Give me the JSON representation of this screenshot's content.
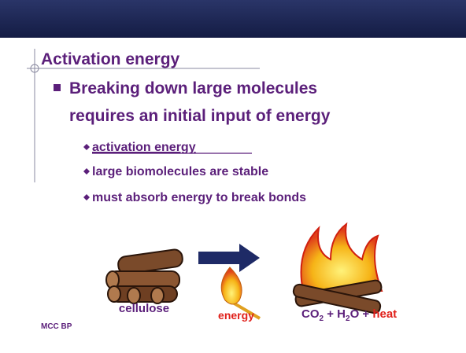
{
  "slide": {
    "title": "Activation energy",
    "bullet": {
      "lines": [
        "Breaking down large molecules",
        "requires an initial input of energy"
      ]
    },
    "sub_bullets": [
      "activation energy",
      "large biomolecules are stable",
      "must absorb energy to break bonds"
    ],
    "figure": {
      "reactant_label": "cellulose",
      "energy_label": "energy",
      "product_parts": [
        "CO",
        "2",
        " + H",
        "2",
        "O + ",
        "heat"
      ]
    },
    "footer": "MCC BP"
  }
}
